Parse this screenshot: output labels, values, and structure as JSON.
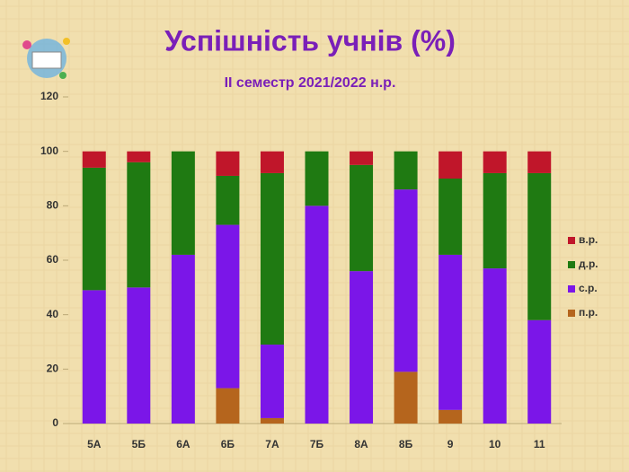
{
  "chart_data": {
    "type": "stacked_bar",
    "title": "Успішність учнів (%)",
    "subtitle": "ІІ семестр 2021/2022 н.р.",
    "categories": [
      "5А",
      "5Б",
      "6А",
      "6Б",
      "7А",
      "7Б",
      "8А",
      "8Б",
      "9",
      "10",
      "11"
    ],
    "series": [
      {
        "name": "п.р.",
        "color": "#b5651d",
        "values": [
          0,
          0,
          0,
          13,
          2,
          0,
          0,
          19,
          5,
          0,
          0
        ]
      },
      {
        "name": "с.р.",
        "color": "#7b16e8",
        "values": [
          49,
          50,
          62,
          60,
          27,
          80,
          56,
          67,
          57,
          57,
          38
        ]
      },
      {
        "name": "д.р.",
        "color": "#1f7a12",
        "values": [
          45,
          46,
          38,
          18,
          63,
          20,
          39,
          14,
          28,
          35,
          54
        ]
      },
      {
        "name": "в.р.",
        "color": "#c0162a",
        "values": [
          6,
          4,
          0,
          9,
          8,
          0,
          5,
          0,
          10,
          8,
          8
        ]
      }
    ],
    "ylim": [
      0,
      120
    ],
    "yticks": [
      0,
      20,
      40,
      60,
      80,
      100,
      120
    ],
    "grid": false
  }
}
